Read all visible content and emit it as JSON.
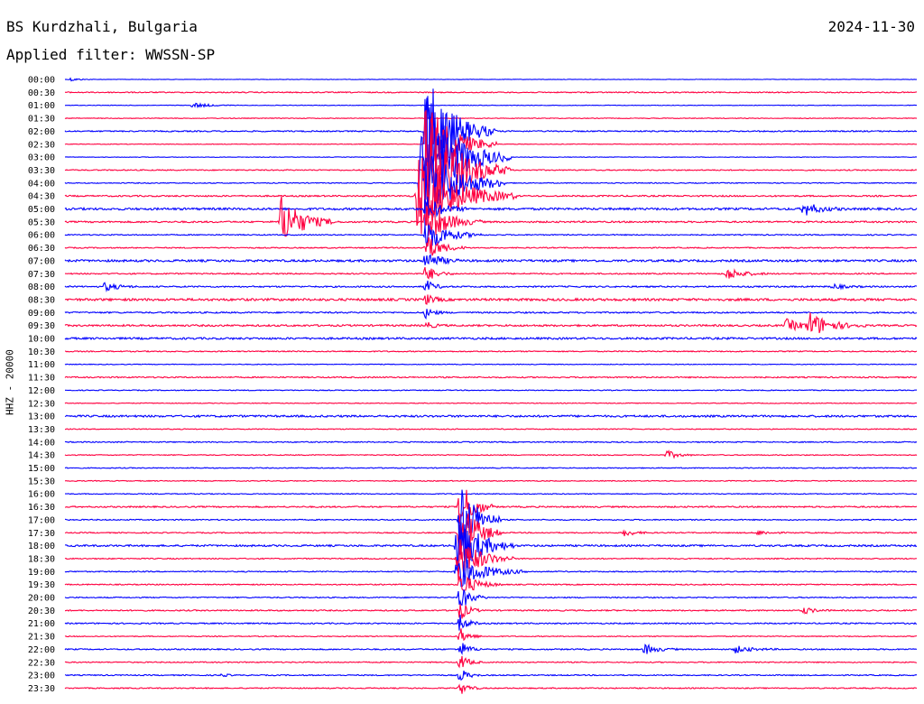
{
  "header": {
    "station": "BS Kurdzhali, Bulgaria",
    "date": "2024-11-30",
    "filter": "Applied filter: WWSSN-SP"
  },
  "axis": {
    "ylabel": "HHZ - 20000"
  },
  "colors": {
    "even": "#0000ff",
    "odd": "#ff0040",
    "text": "#000000",
    "background": "#ffffff"
  },
  "chart_data": {
    "type": "line",
    "title": "BS Kurdzhali, Bulgaria",
    "ylabel": "HHZ - 20000",
    "y_tick_labels": [
      "00:00",
      "00:30",
      "01:00",
      "01:30",
      "02:00",
      "02:30",
      "03:00",
      "03:30",
      "04:00",
      "04:30",
      "05:00",
      "05:30",
      "06:00",
      "06:30",
      "07:00",
      "07:30",
      "08:00",
      "08:30",
      "09:00",
      "09:30",
      "10:00",
      "10:30",
      "11:00",
      "11:30",
      "12:00",
      "12:30",
      "13:00",
      "13:30",
      "14:00",
      "14:30",
      "15:00",
      "15:30",
      "16:00",
      "16:30",
      "17:00",
      "17:30",
      "18:00",
      "18:30",
      "19:00",
      "19:30",
      "20:00",
      "20:30",
      "21:00",
      "21:30",
      "22:00",
      "22:30",
      "23:00",
      "23:30"
    ],
    "x_range_minutes": [
      0,
      30
    ],
    "noise_levels": [
      0.25,
      0.6,
      0.3,
      0.4,
      0.7,
      0.3,
      0.3,
      0.6,
      0.5,
      0.8,
      1.2,
      0.9,
      0.6,
      0.6,
      1.2,
      0.7,
      0.8,
      1.3,
      0.8,
      1.0,
      1.1,
      0.6,
      0.4,
      0.7,
      0.5,
      0.4,
      1.1,
      0.5,
      0.6,
      0.5,
      0.5,
      0.5,
      0.5,
      0.8,
      0.6,
      0.6,
      1.0,
      0.6,
      0.6,
      0.6,
      0.6,
      0.7,
      0.7,
      0.5,
      0.7,
      0.6,
      0.6,
      0.6
    ],
    "events": [
      {
        "line": 0,
        "minute": 0.2,
        "amplitude": 2,
        "duration_min": 0.8
      },
      {
        "line": 2,
        "minute": 4.5,
        "amplitude": 3,
        "duration_min": 1.5
      },
      {
        "line": 4,
        "minute": 12.7,
        "amplitude": 65,
        "duration_min": 2.5
      },
      {
        "line": 5,
        "minute": 12.7,
        "amplitude": 50,
        "duration_min": 2.5
      },
      {
        "line": 6,
        "minute": 12.7,
        "amplitude": 70,
        "duration_min": 3
      },
      {
        "line": 7,
        "minute": 12.7,
        "amplitude": 70,
        "duration_min": 3
      },
      {
        "line": 8,
        "minute": 12.5,
        "amplitude": 60,
        "duration_min": 3
      },
      {
        "line": 9,
        "minute": 12.4,
        "amplitude": 50,
        "duration_min": 3.5
      },
      {
        "line": 10,
        "minute": 12.7,
        "amplitude": 15,
        "duration_min": 1.5
      },
      {
        "line": 11,
        "minute": 12.7,
        "amplitude": 25,
        "duration_min": 2
      },
      {
        "line": 12,
        "minute": 12.7,
        "amplitude": 20,
        "duration_min": 2
      },
      {
        "line": 13,
        "minute": 12.7,
        "amplitude": 15,
        "duration_min": 1.5
      },
      {
        "line": 14,
        "minute": 12.7,
        "amplitude": 12,
        "duration_min": 1.2
      },
      {
        "line": 15,
        "minute": 12.7,
        "amplitude": 10,
        "duration_min": 1
      },
      {
        "line": 16,
        "minute": 12.7,
        "amplitude": 8,
        "duration_min": 0.8
      },
      {
        "line": 17,
        "minute": 12.7,
        "amplitude": 6,
        "duration_min": 0.8
      },
      {
        "line": 18,
        "minute": 12.7,
        "amplitude": 6,
        "duration_min": 0.8
      },
      {
        "line": 19,
        "minute": 12.7,
        "amplitude": 4,
        "duration_min": 0.8
      },
      {
        "line": 11,
        "minute": 7.6,
        "amplitude": 30,
        "duration_min": 2
      },
      {
        "line": 10,
        "minute": 26.0,
        "amplitude": 8,
        "duration_min": 1.5
      },
      {
        "line": 15,
        "minute": 23.3,
        "amplitude": 7,
        "duration_min": 1.5
      },
      {
        "line": 16,
        "minute": 1.4,
        "amplitude": 5,
        "duration_min": 1.2
      },
      {
        "line": 16,
        "minute": 27.0,
        "amplitude": 3,
        "duration_min": 1.2
      },
      {
        "line": 19,
        "minute": 25.4,
        "amplitude": 7,
        "duration_min": 1.5
      },
      {
        "line": 19,
        "minute": 26.2,
        "amplitude": 14,
        "duration_min": 2
      },
      {
        "line": 29,
        "minute": 21.2,
        "amplitude": 5,
        "duration_min": 1
      },
      {
        "line": 33,
        "minute": 13.9,
        "amplitude": 35,
        "duration_min": 1.2
      },
      {
        "line": 34,
        "minute": 13.9,
        "amplitude": 50,
        "duration_min": 1.5
      },
      {
        "line": 35,
        "minute": 13.9,
        "amplitude": 45,
        "duration_min": 1.5
      },
      {
        "line": 35,
        "minute": 19.7,
        "amplitude": 4,
        "duration_min": 1
      },
      {
        "line": 35,
        "minute": 24.4,
        "amplitude": 3,
        "duration_min": 1
      },
      {
        "line": 36,
        "minute": 13.8,
        "amplitude": 40,
        "duration_min": 2
      },
      {
        "line": 37,
        "minute": 13.8,
        "amplitude": 30,
        "duration_min": 2
      },
      {
        "line": 38,
        "minute": 13.8,
        "amplitude": 20,
        "duration_min": 2.5
      },
      {
        "line": 39,
        "minute": 13.9,
        "amplitude": 15,
        "duration_min": 1.5
      },
      {
        "line": 40,
        "minute": 13.9,
        "amplitude": 15,
        "duration_min": 1
      },
      {
        "line": 41,
        "minute": 13.9,
        "amplitude": 12,
        "duration_min": 0.8
      },
      {
        "line": 42,
        "minute": 13.9,
        "amplitude": 10,
        "duration_min": 0.8
      },
      {
        "line": 43,
        "minute": 13.9,
        "amplitude": 10,
        "duration_min": 0.8
      },
      {
        "line": 44,
        "minute": 13.9,
        "amplitude": 10,
        "duration_min": 0.8
      },
      {
        "line": 45,
        "minute": 13.9,
        "amplitude": 10,
        "duration_min": 0.8
      },
      {
        "line": 46,
        "minute": 13.9,
        "amplitude": 8,
        "duration_min": 0.8
      },
      {
        "line": 47,
        "minute": 13.9,
        "amplitude": 8,
        "duration_min": 0.8
      },
      {
        "line": 41,
        "minute": 26.0,
        "amplitude": 4,
        "duration_min": 1
      },
      {
        "line": 44,
        "minute": 20.4,
        "amplitude": 6,
        "duration_min": 1.2
      },
      {
        "line": 44,
        "minute": 23.6,
        "amplitude": 4,
        "duration_min": 1.5
      },
      {
        "line": 46,
        "minute": 5.5,
        "amplitude": 2,
        "duration_min": 0.6
      }
    ]
  }
}
